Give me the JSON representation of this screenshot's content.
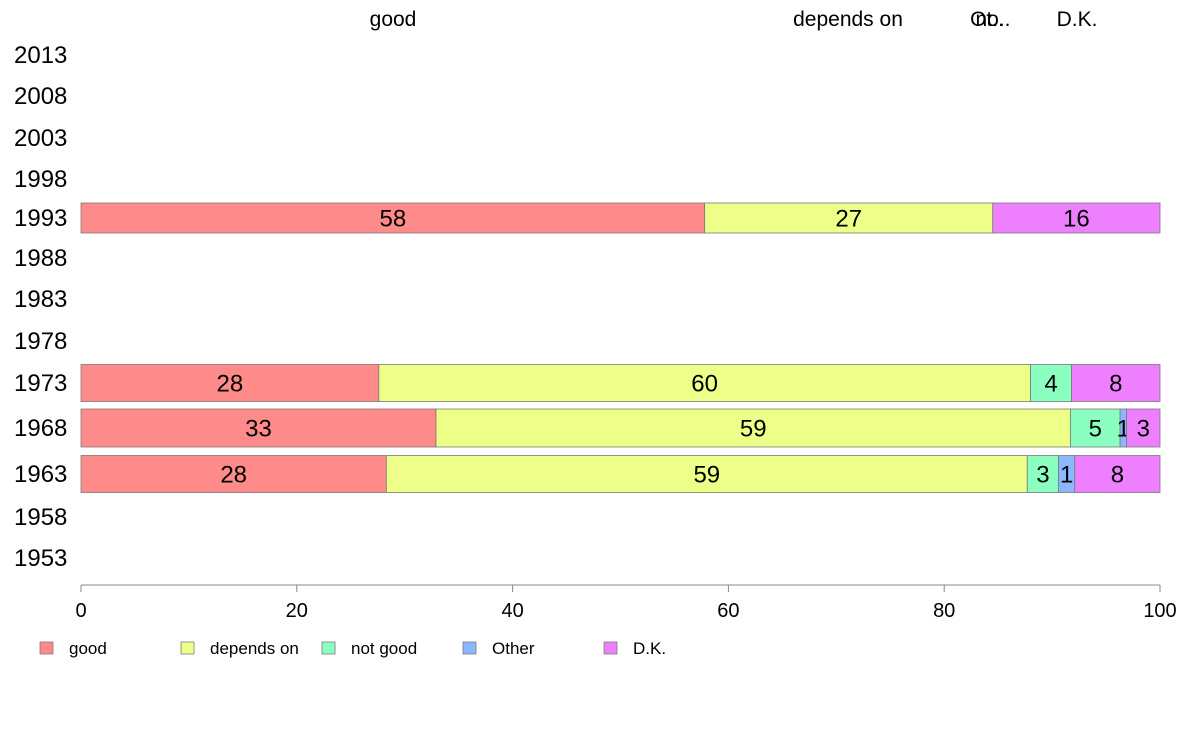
{
  "chart_data": {
    "type": "bar",
    "orientation": "horizontal",
    "stacked": true,
    "title": "",
    "xlabel": "",
    "ylabel": "",
    "xlim": [
      0,
      100
    ],
    "x_ticks": [
      "0",
      "20",
      "40",
      "60",
      "80",
      "100"
    ],
    "categories": [
      "2013",
      "2008",
      "2003",
      "1998",
      "1993",
      "1988",
      "1983",
      "1978",
      "1973",
      "1968",
      "1963",
      "1958",
      "1953"
    ],
    "top_labels": [
      "good",
      "depends on",
      "Ot..",
      "no..",
      "D.K."
    ],
    "legend_position": "bottom-left",
    "series": [
      {
        "name": "good",
        "color": "#ff8a8a",
        "values": [
          null,
          null,
          null,
          null,
          57.8,
          null,
          null,
          null,
          27.6,
          32.9,
          28.3,
          null,
          null
        ],
        "labels": [
          "",
          "",
          "",
          "",
          "58",
          "",
          "",
          "",
          "28",
          "33",
          "28",
          "",
          ""
        ]
      },
      {
        "name": "depends on",
        "color": "#edff88",
        "values": [
          null,
          null,
          null,
          null,
          26.7,
          null,
          null,
          null,
          60.4,
          58.8,
          59.4,
          null,
          null
        ],
        "labels": [
          "",
          "",
          "",
          "",
          "27",
          "",
          "",
          "",
          "60",
          "59",
          "59",
          "",
          ""
        ]
      },
      {
        "name": "not good",
        "color": "#8affc0",
        "values": [
          null,
          null,
          null,
          null,
          0,
          null,
          null,
          null,
          3.8,
          4.6,
          2.9,
          null,
          null
        ],
        "labels": [
          "",
          "",
          "",
          "",
          "",
          "",
          "",
          "",
          "4",
          "5",
          "3",
          "",
          ""
        ]
      },
      {
        "name": "Other",
        "color": "#8ab8ff",
        "values": [
          null,
          null,
          null,
          null,
          0,
          null,
          null,
          null,
          0,
          0.6,
          1.5,
          null,
          null
        ],
        "labels": [
          "",
          "",
          "",
          "",
          "",
          "",
          "",
          "",
          "",
          "1",
          "1",
          "",
          ""
        ]
      },
      {
        "name": "D.K.",
        "color": "#ee80ff",
        "values": [
          null,
          null,
          null,
          null,
          15.5,
          null,
          null,
          null,
          8.2,
          3.1,
          7.9,
          null,
          null
        ],
        "labels": [
          "",
          "",
          "",
          "",
          "16",
          "",
          "",
          "",
          "8",
          "3",
          "8",
          "",
          ""
        ]
      }
    ]
  }
}
